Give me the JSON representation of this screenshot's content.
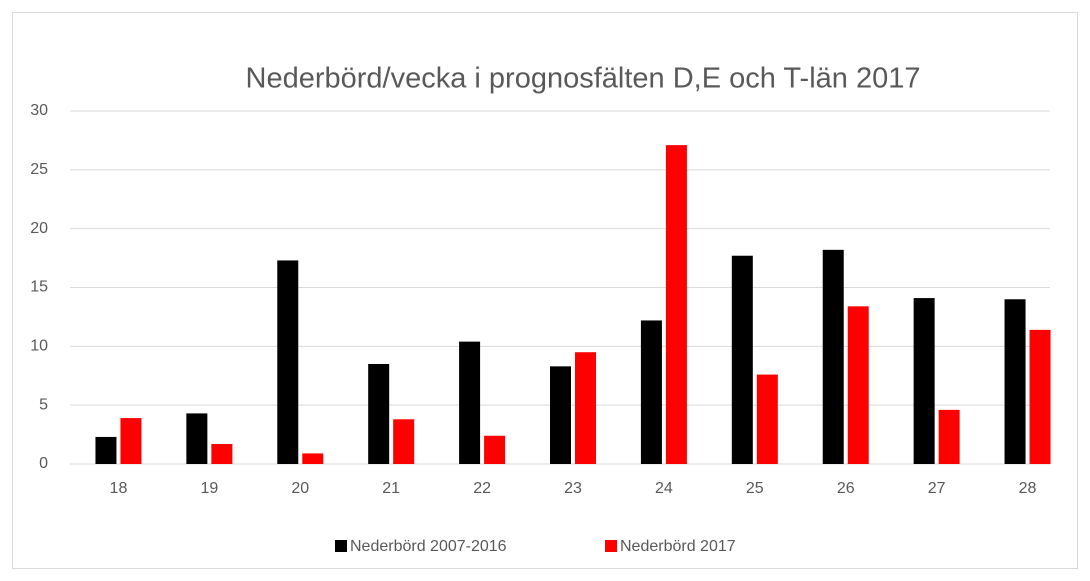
{
  "chart_data": {
    "type": "bar",
    "title": "Nederbörd/vecka i prognosfälten D,E och T-län 2017",
    "categories": [
      "18",
      "19",
      "20",
      "21",
      "22",
      "23",
      "24",
      "25",
      "26",
      "27",
      "28"
    ],
    "series": [
      {
        "name": "Nederbörd 2007-2016",
        "color": "#000000",
        "values": [
          2.3,
          4.3,
          17.3,
          8.5,
          10.4,
          8.3,
          12.2,
          17.7,
          18.2,
          14.1,
          14.0
        ]
      },
      {
        "name": "Nederbörd 2017",
        "color": "#ff0000",
        "values": [
          3.9,
          1.7,
          0.9,
          3.8,
          2.4,
          9.5,
          27.1,
          7.6,
          13.4,
          4.6,
          11.4
        ]
      }
    ],
    "ylim": [
      0,
      30
    ],
    "yticks": [
      0,
      5,
      10,
      15,
      20,
      25,
      30
    ],
    "grid": true,
    "legend": "bottom"
  }
}
